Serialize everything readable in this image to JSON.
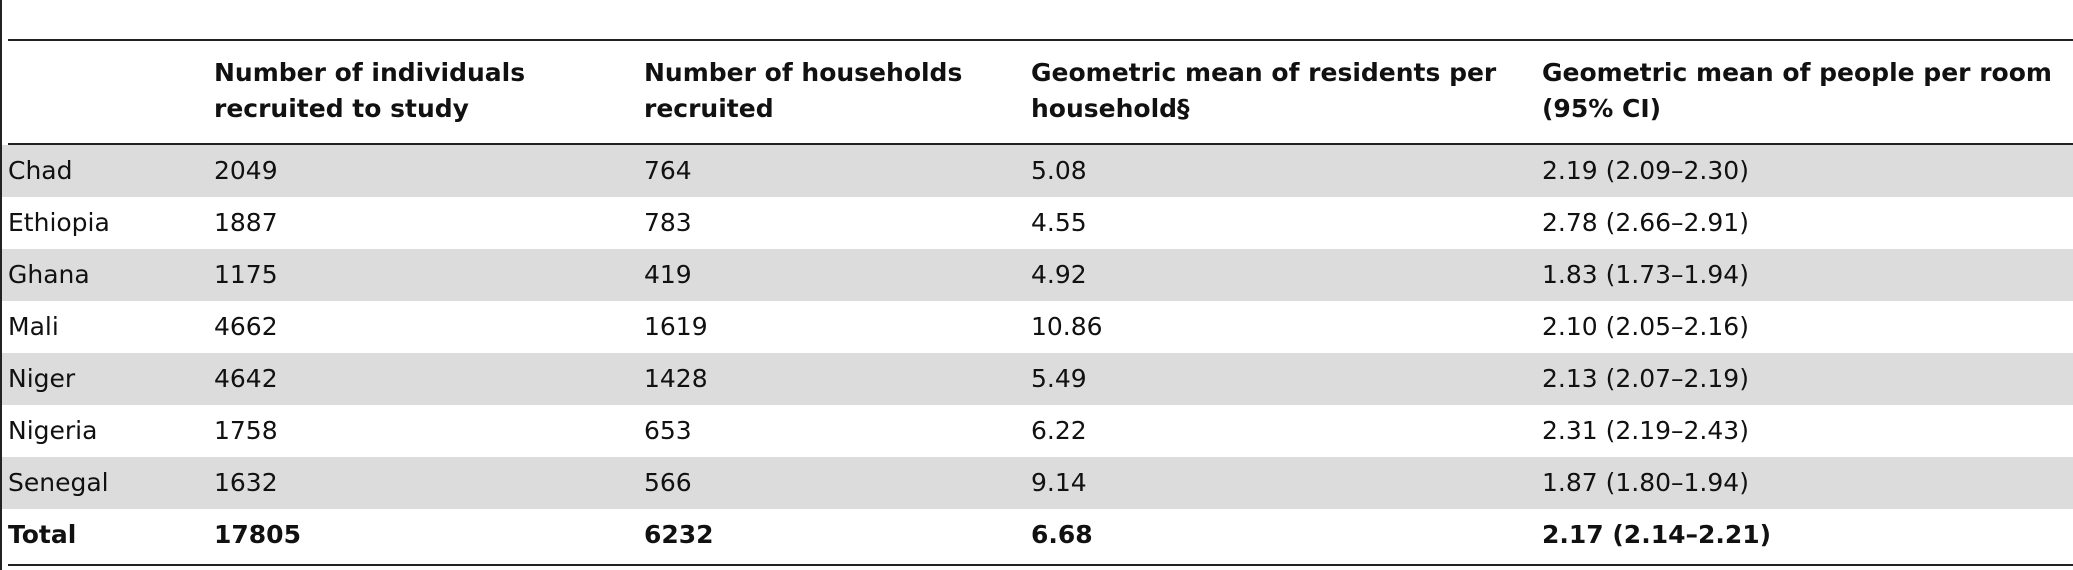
{
  "table": {
    "headers": [
      "Number of individuals recruited to study",
      "Number of households recruited",
      "Geometric mean of residents per household§",
      "Geometric mean of people per room (95% CI)"
    ],
    "rows": [
      [
        "Chad",
        "2049",
        "764",
        "5.08",
        "2.19 (2.09–2.30)"
      ],
      [
        "Ethiopia",
        "1887",
        "783",
        "4.55",
        "2.78 (2.66–2.91)"
      ],
      [
        "Ghana",
        "1175",
        "419",
        "4.92",
        "1.83 (1.73–1.94)"
      ],
      [
        "Mali",
        "4662",
        "1619",
        "10.86",
        "2.10 (2.05–2.16)"
      ],
      [
        "Niger",
        "4642",
        "1428",
        "5.49",
        "2.13 (2.07–2.19)"
      ],
      [
        "Nigeria",
        "1758",
        "653",
        "6.22",
        "2.31 (2.19–2.43)"
      ],
      [
        "Senegal",
        "1632",
        "566",
        "9.14",
        "1.87 (1.80–1.94)"
      ]
    ],
    "total": [
      "Total",
      "17805",
      "6232",
      "6.68",
      "2.17 (2.14–2.21)"
    ]
  }
}
